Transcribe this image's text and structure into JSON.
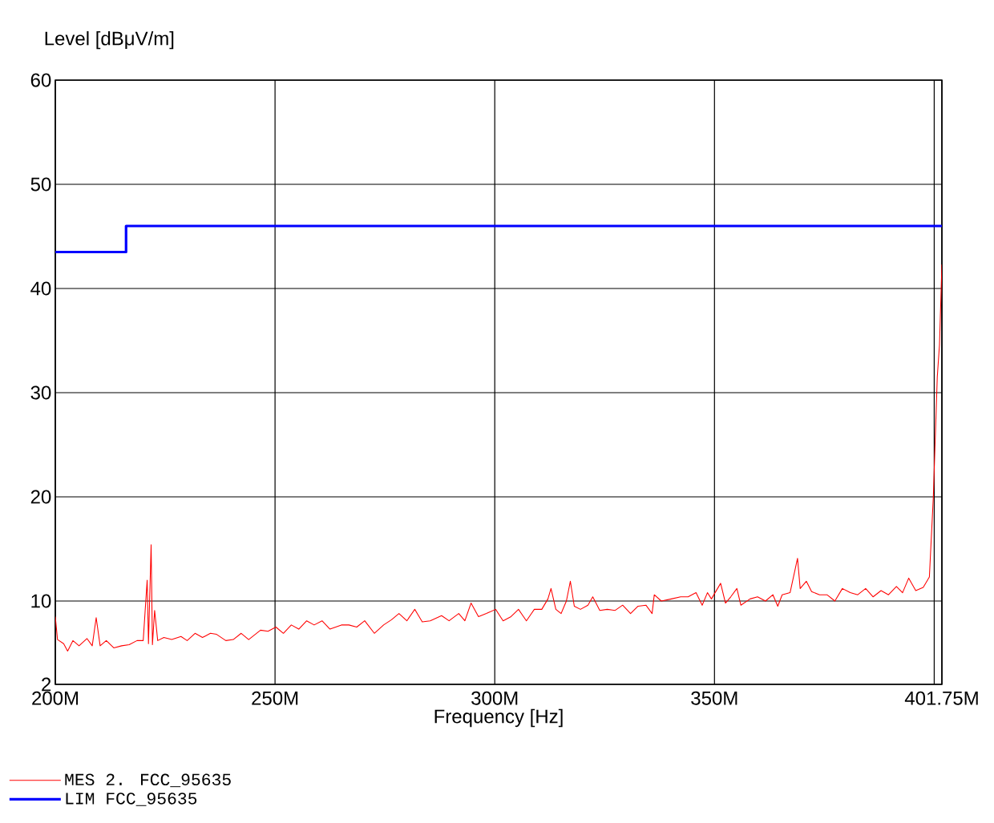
{
  "chart_data": {
    "type": "line",
    "xlabel": "Frequency [Hz]",
    "ylabel": "Level [dBμV/m]",
    "xlim": [
      200,
      401.75
    ],
    "ylim": [
      2,
      60
    ],
    "xticks": [
      {
        "value": 200,
        "label": "200M"
      },
      {
        "value": 250,
        "label": "250M"
      },
      {
        "value": 300,
        "label": "300M"
      },
      {
        "value": 350,
        "label": "350M"
      },
      {
        "value": 400,
        "label": null
      },
      {
        "value": 401.75,
        "label": "401.75M"
      }
    ],
    "yticks": [
      2,
      10,
      20,
      30,
      40,
      50,
      60
    ],
    "grid": true,
    "legend": "bottom left",
    "series": [
      {
        "name": "MES 2. FCC_95635",
        "color": "#ff0000",
        "x": [
          200,
          200.5,
          201.9,
          202.8,
          204.0,
          205.4,
          207.2,
          208.4,
          209.3,
          210.2,
          211.6,
          213.3,
          215.1,
          216.8,
          218.6,
          220.0,
          220.9,
          221.2,
          221.8,
          222.1,
          222.6,
          223.3,
          224.7,
          226.5,
          228.6,
          230.0,
          231.8,
          233.5,
          235.3,
          236.7,
          238.8,
          240.5,
          242.3,
          244.0,
          246.7,
          248.4,
          250.2,
          251.9,
          253.7,
          255.4,
          257.2,
          258.9,
          260.7,
          262.5,
          265.1,
          266.8,
          268.6,
          270.4,
          272.6,
          274.7,
          276.5,
          278.2,
          280.0,
          281.8,
          283.5,
          285.3,
          287.9,
          289.6,
          291.8,
          293.2,
          294.6,
          296.3,
          298.1,
          300.2,
          301.9,
          303.7,
          305.4,
          307.2,
          309.0,
          310.7,
          312.1,
          312.8,
          313.9,
          315.1,
          316.3,
          317.2,
          318.1,
          319.5,
          321.2,
          322.3,
          323.9,
          325.6,
          327.4,
          329.1,
          330.9,
          332.6,
          334.4,
          335.8,
          336.3,
          337.9,
          340.2,
          342.3,
          344.0,
          345.8,
          347.2,
          348.4,
          349.3,
          351.4,
          352.5,
          353.7,
          355.1,
          356.0,
          358.1,
          359.8,
          361.6,
          363.3,
          364.4,
          365.4,
          367.2,
          368.9,
          369.5,
          370.9,
          372.1,
          373.9,
          375.6,
          377.4,
          379.1,
          380.9,
          382.6,
          384.4,
          386.1,
          387.9,
          389.6,
          391.4,
          392.8,
          394.2,
          395.8,
          397.5,
          398.9,
          399.8,
          400.7,
          401.2,
          401.75
        ],
        "values": [
          8.5,
          6.3,
          5.9,
          5.2,
          6.2,
          5.7,
          6.4,
          5.7,
          8.4,
          5.7,
          6.2,
          5.5,
          5.7,
          5.8,
          6.2,
          6.2,
          12.0,
          5.9,
          15.4,
          5.8,
          9.1,
          6.2,
          6.5,
          6.3,
          6.6,
          6.2,
          6.9,
          6.5,
          6.9,
          6.8,
          6.2,
          6.3,
          6.9,
          6.3,
          7.2,
          7.1,
          7.5,
          6.9,
          7.7,
          7.3,
          8.1,
          7.7,
          8.1,
          7.3,
          7.7,
          7.7,
          7.5,
          8.1,
          6.9,
          7.7,
          8.2,
          8.8,
          8.1,
          9.2,
          8.0,
          8.1,
          8.6,
          8.1,
          8.8,
          8.1,
          9.8,
          8.5,
          8.8,
          9.2,
          8.1,
          8.5,
          9.2,
          8.1,
          9.2,
          9.2,
          10.2,
          11.2,
          9.2,
          8.8,
          10.0,
          11.9,
          9.5,
          9.2,
          9.6,
          10.4,
          9.1,
          9.2,
          9.1,
          9.6,
          8.8,
          9.5,
          9.6,
          8.8,
          10.6,
          10.0,
          10.2,
          10.4,
          10.4,
          10.8,
          9.6,
          10.8,
          10.2,
          11.7,
          9.8,
          10.4,
          11.2,
          9.6,
          10.2,
          10.4,
          10.0,
          10.6,
          9.5,
          10.6,
          10.8,
          14.1,
          11.2,
          11.9,
          10.9,
          10.6,
          10.6,
          10.0,
          11.2,
          10.8,
          10.6,
          11.2,
          10.4,
          11.0,
          10.6,
          11.4,
          10.8,
          12.2,
          11.0,
          11.3,
          12.3,
          20.0,
          31.5,
          34.6,
          42.3
        ]
      },
      {
        "name": "LIM FCC_95635",
        "type": "step",
        "color": "#0000ff",
        "x": [
          200,
          216.1,
          401.75
        ],
        "values": [
          43.5,
          46,
          46
        ]
      }
    ]
  }
}
